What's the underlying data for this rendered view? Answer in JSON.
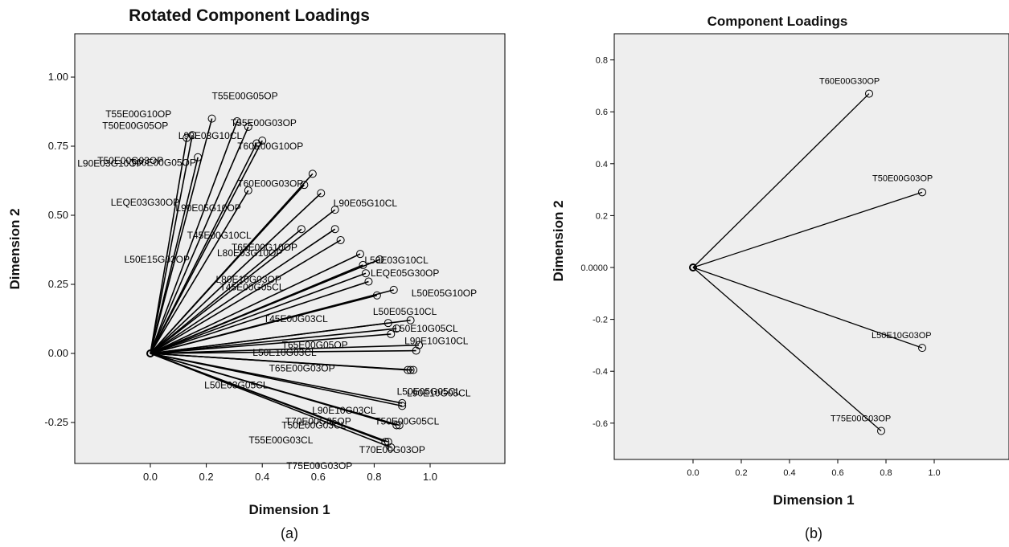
{
  "chart_data": [
    {
      "type": "scatter",
      "title": "Rotated Component Loadings",
      "xlabel": "Dimension 1",
      "ylabel": "Dimension 2",
      "caption": "(a)",
      "xlim": [
        -0.4,
        1.2
      ],
      "ylim": [
        -0.4,
        1.15
      ],
      "xticks": [
        "0.0",
        "0.2",
        "0.4",
        "0.6",
        "0.8",
        "1.0"
      ],
      "yticks": [
        "1.00",
        "0.75",
        "0.50",
        "0.25",
        "0.00",
        "-0.25"
      ],
      "grid": false,
      "points": [
        {
          "label": "T55E00G05OP",
          "x": 0.22,
          "y": 0.85
        },
        {
          "label": "T55E00G10OP",
          "x": 0.15,
          "y": 0.79
        },
        {
          "label": "T50E00G05OP",
          "x": 0.13,
          "y": 0.78
        },
        {
          "label": "T55E00G03OP",
          "x": 0.31,
          "y": 0.84
        },
        {
          "label": "T50E00G03OP",
          "x": 0.17,
          "y": 0.71
        },
        {
          "label": "L90E03G10CL",
          "x": 0.35,
          "y": 0.82
        },
        {
          "label": "L90E03G10OP",
          "x": 0.38,
          "y": 0.76
        },
        {
          "label": "T60E00G10OP",
          "x": 0.4,
          "y": 0.77
        },
        {
          "label": "LEQE03G30OP",
          "x": 0.35,
          "y": 0.59
        },
        {
          "label": "T60E00G05OP",
          "x": 0.58,
          "y": 0.65
        },
        {
          "label": "L90E05G10OP",
          "x": 0.55,
          "y": 0.61
        },
        {
          "label": "T60E00G03OP",
          "x": 0.61,
          "y": 0.58
        },
        {
          "label": "L90E05G10CL",
          "x": 0.66,
          "y": 0.52
        },
        {
          "label": "T45E00G10CL",
          "x": 0.66,
          "y": 0.45
        },
        {
          "label": "T65E00G10OP",
          "x": 0.54,
          "y": 0.45
        },
        {
          "label": "L50E15G03OP",
          "x": 0.68,
          "y": 0.41
        },
        {
          "label": "L50E03G10CL",
          "x": 0.82,
          "y": 0.34
        },
        {
          "label": "L80E03G10OP",
          "x": 0.75,
          "y": 0.36
        },
        {
          "label": "LEQE05G30OP",
          "x": 0.77,
          "y": 0.29
        },
        {
          "label": "L80E10G03OP",
          "x": 0.76,
          "y": 0.32
        },
        {
          "label": "L50E05G10OP",
          "x": 0.87,
          "y": 0.23
        },
        {
          "label": "T45E00G05CL",
          "x": 0.78,
          "y": 0.26
        },
        {
          "label": "L50E05G10CL",
          "x": 0.81,
          "y": 0.21
        },
        {
          "label": "T65E00G05OP",
          "x": 0.93,
          "y": 0.12
        },
        {
          "label": "T45E00G03CL",
          "x": 0.85,
          "y": 0.11
        },
        {
          "label": "L50E10G05CL",
          "x": 0.88,
          "y": 0.09
        },
        {
          "label": "L50E10G03CL",
          "x": 0.86,
          "y": 0.07
        },
        {
          "label": "L90E10G10CL",
          "x": 0.96,
          "y": 0.03
        },
        {
          "label": "T65E00G03OP",
          "x": 0.95,
          "y": 0.01
        },
        {
          "label": "L50E05G05CL",
          "x": 0.93,
          "y": -0.06
        },
        {
          "label": "L90E10G05CL",
          "x": 0.94,
          "y": -0.06
        },
        {
          "label": "L50E03G05CL",
          "x": 0.92,
          "y": -0.06
        },
        {
          "label": "L90E10G03CL",
          "x": 0.9,
          "y": -0.18
        },
        {
          "label": "T50E00G05CL",
          "x": 0.9,
          "y": -0.19
        },
        {
          "label": "T70E00G05OP",
          "x": 0.89,
          "y": -0.26
        },
        {
          "label": "T50E00G03CL",
          "x": 0.88,
          "y": -0.26
        },
        {
          "label": "T70E00G03OP",
          "x": 0.85,
          "y": -0.32
        },
        {
          "label": "T55E00G03CL",
          "x": 0.84,
          "y": -0.32
        },
        {
          "label": "T75E00G03OP",
          "x": 0.86,
          "y": -0.34
        }
      ]
    },
    {
      "type": "scatter",
      "title": "Component Loadings",
      "xlabel": "Dimension 1",
      "ylabel": "Dimension 2",
      "caption": "(b)",
      "xlim": [
        -0.85,
        1.47
      ],
      "ylim": [
        -0.73,
        0.92
      ],
      "xticks": [
        "0.0",
        "0.2",
        "0.4",
        "0.6",
        "0.8",
        "1.0"
      ],
      "yticks": [
        "0.8",
        "0.6",
        "0.4",
        "0.2",
        "0.0000",
        "-0.2",
        "-0.4",
        "-0.6"
      ],
      "grid": false,
      "points": [
        {
          "label": "T60E00G30OP",
          "x": 0.73,
          "y": 0.67
        },
        {
          "label": "T50E00G03OP",
          "x": 0.95,
          "y": 0.29
        },
        {
          "label": "L50E10G03OP",
          "x": 0.95,
          "y": -0.31
        },
        {
          "label": "T75E00G03OP",
          "x": 0.78,
          "y": -0.63
        }
      ]
    }
  ]
}
